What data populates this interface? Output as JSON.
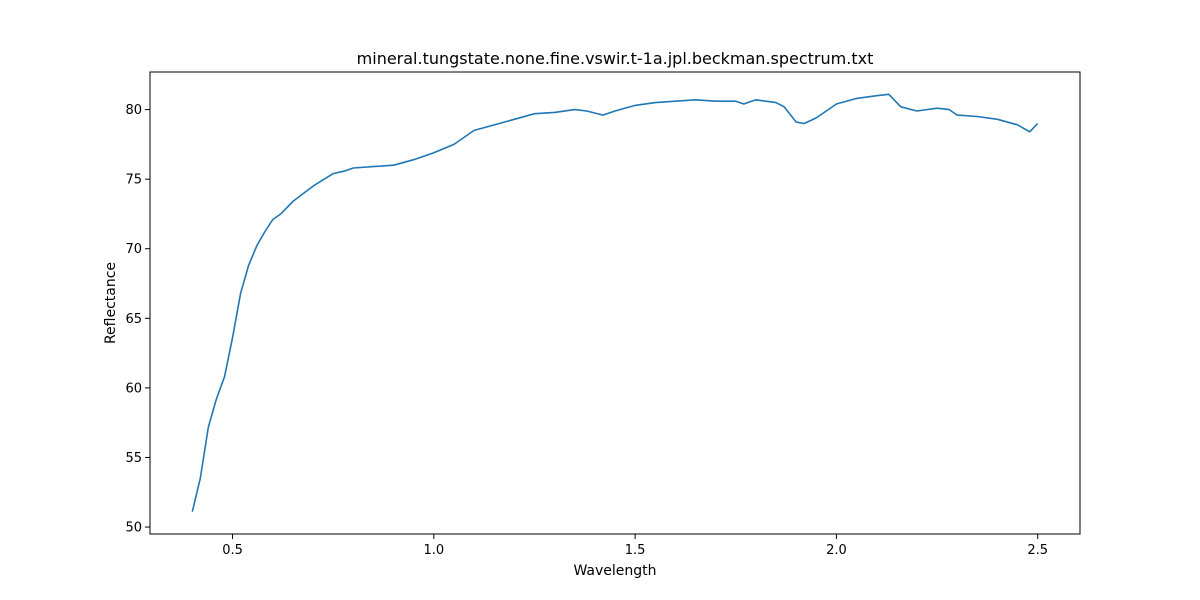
{
  "chart_data": {
    "type": "line",
    "title": "mineral.tungstate.none.fine.vswir.t-1a.jpl.beckman.spectrum.txt",
    "xlabel": "Wavelength",
    "ylabel": "Reflectance",
    "xlim": [
      0.295,
      2.605
    ],
    "ylim": [
      49.5,
      82.7
    ],
    "xticks": [
      0.5,
      1.0,
      1.5,
      2.0,
      2.5
    ],
    "xtick_labels": [
      "0.5",
      "1.0",
      "1.5",
      "2.0",
      "2.5"
    ],
    "yticks": [
      50,
      55,
      60,
      65,
      70,
      75,
      80
    ],
    "ytick_labels": [
      "50",
      "55",
      "60",
      "65",
      "70",
      "75",
      "80"
    ],
    "grid": false,
    "line_color": "#1f77b4",
    "series": [
      {
        "x": [
          0.4,
          0.42,
          0.44,
          0.46,
          0.48,
          0.5,
          0.52,
          0.54,
          0.56,
          0.58,
          0.6,
          0.62,
          0.65,
          0.7,
          0.75,
          0.78,
          0.8,
          0.85,
          0.9,
          0.95,
          1.0,
          1.05,
          1.1,
          1.15,
          1.2,
          1.25,
          1.3,
          1.35,
          1.38,
          1.42,
          1.45,
          1.5,
          1.55,
          1.6,
          1.65,
          1.7,
          1.75,
          1.77,
          1.8,
          1.85,
          1.87,
          1.9,
          1.92,
          1.95,
          2.0,
          2.05,
          2.1,
          2.13,
          2.16,
          2.2,
          2.25,
          2.28,
          2.3,
          2.35,
          2.4,
          2.45,
          2.48,
          2.5
        ],
        "y": [
          51.1,
          53.5,
          57.2,
          59.2,
          60.8,
          63.6,
          66.8,
          68.8,
          70.2,
          71.2,
          72.1,
          72.5,
          73.4,
          74.5,
          75.4,
          75.6,
          75.8,
          75.9,
          76.0,
          76.4,
          76.9,
          77.5,
          78.5,
          78.9,
          79.3,
          79.7,
          79.8,
          80.0,
          79.9,
          79.6,
          79.9,
          80.3,
          80.5,
          80.6,
          80.7,
          80.6,
          80.6,
          80.4,
          80.7,
          80.5,
          80.2,
          79.1,
          79.0,
          79.4,
          80.4,
          80.8,
          81.0,
          81.1,
          80.2,
          79.9,
          80.1,
          80.0,
          79.6,
          79.5,
          79.3,
          78.9,
          78.4,
          79.0
        ]
      }
    ]
  }
}
